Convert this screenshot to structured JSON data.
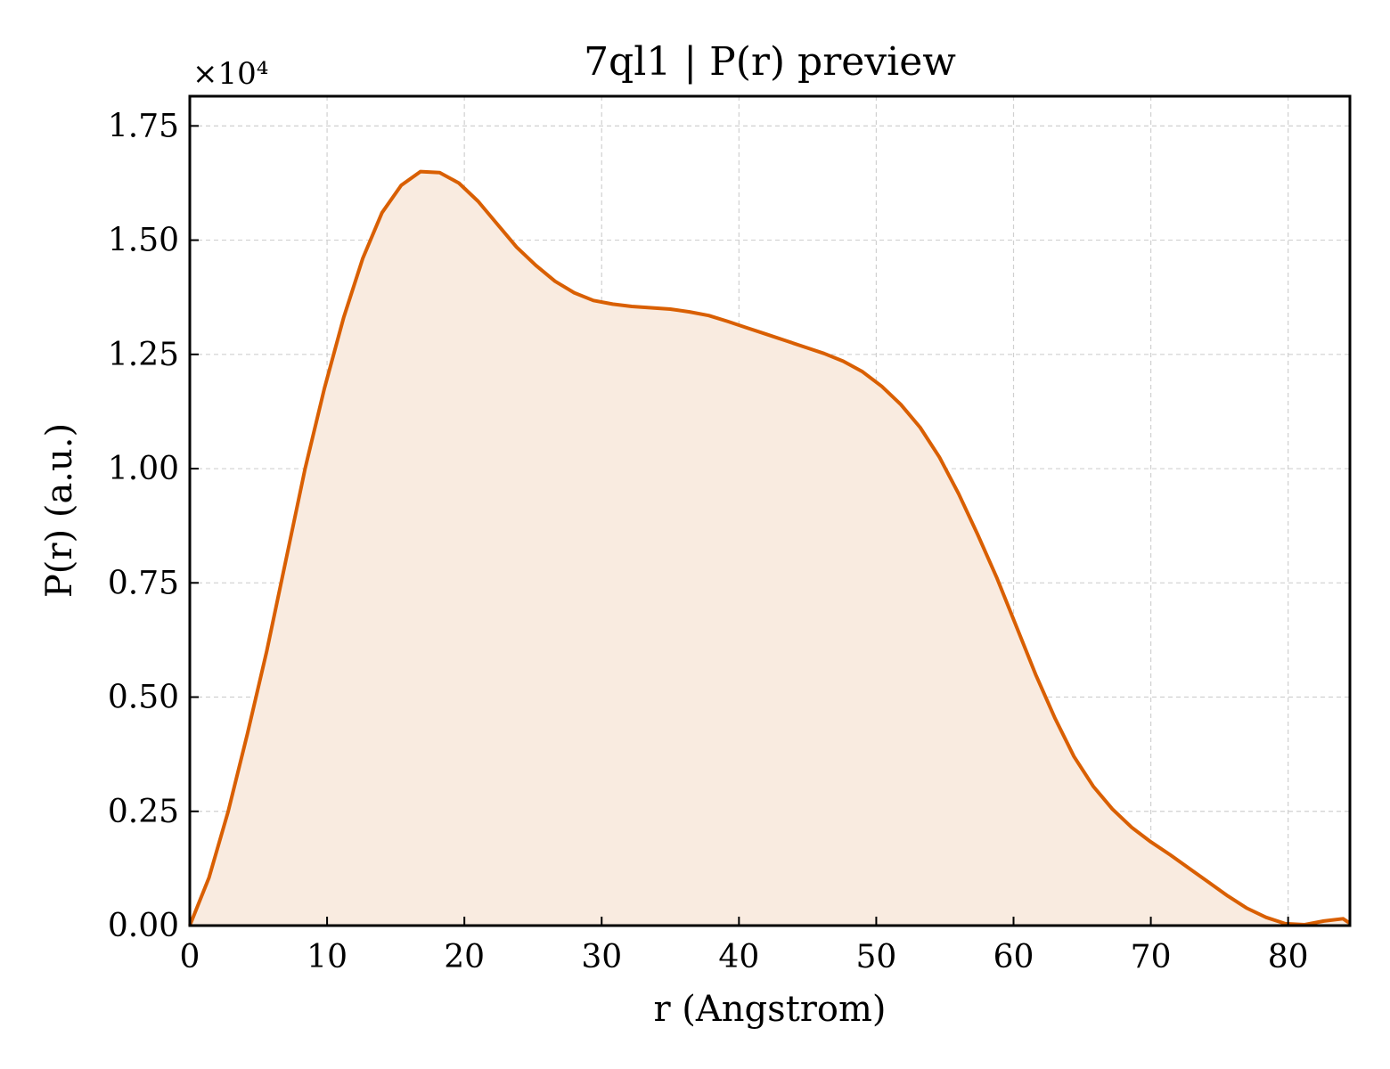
{
  "chart_data": {
    "type": "area",
    "title": "7ql1 | P(r) preview",
    "xlabel": "r (Angstrom)",
    "ylabel": "P(r) (a.u.)",
    "y_offset_label": "×10⁴",
    "xlim": [
      0,
      84.5
    ],
    "ylim": [
      0,
      1.815
    ],
    "x_ticks": [
      0,
      10,
      20,
      30,
      40,
      50,
      60,
      70,
      80
    ],
    "x_tick_labels": [
      "0",
      "10",
      "20",
      "30",
      "40",
      "50",
      "60",
      "70",
      "80"
    ],
    "y_ticks": [
      0,
      0.25,
      0.5,
      0.75,
      1.0,
      1.25,
      1.5,
      1.75
    ],
    "y_tick_labels": [
      "0.00",
      "0.25",
      "0.50",
      "0.75",
      "1.00",
      "1.25",
      "1.50",
      "1.75"
    ],
    "grid": true,
    "line_color": "#d95f02",
    "fill_color": "#f9ebe0",
    "series": [
      {
        "x": [
          0,
          1.4,
          2.8,
          4.2,
          5.6,
          7.0,
          8.4,
          9.8,
          11.2,
          12.6,
          14.0,
          15.4,
          16.8,
          18.2,
          19.6,
          21.0,
          22.4,
          23.8,
          25.2,
          26.6,
          28.0,
          29.4,
          30.8,
          32.2,
          33.6,
          35.0,
          36.4,
          37.8,
          39.2,
          40.6,
          42.0,
          43.4,
          44.8,
          46.2,
          47.6,
          49.0,
          50.4,
          51.8,
          53.2,
          54.6,
          56.0,
          57.4,
          58.8,
          60.2,
          61.6,
          63.0,
          64.4,
          65.8,
          67.2,
          68.6,
          70.0,
          71.4,
          72.8,
          74.2,
          75.6,
          77.0,
          78.4,
          79.8,
          81.2,
          82.6,
          84.0,
          84.5
        ],
        "y": [
          0.0,
          0.105,
          0.25,
          0.42,
          0.6,
          0.8,
          1.0,
          1.175,
          1.33,
          1.46,
          1.56,
          1.62,
          1.65,
          1.648,
          1.625,
          1.585,
          1.535,
          1.485,
          1.445,
          1.41,
          1.385,
          1.368,
          1.36,
          1.355,
          1.352,
          1.349,
          1.343,
          1.335,
          1.322,
          1.308,
          1.294,
          1.28,
          1.266,
          1.252,
          1.235,
          1.212,
          1.18,
          1.14,
          1.09,
          1.025,
          0.945,
          0.855,
          0.76,
          0.655,
          0.55,
          0.455,
          0.37,
          0.305,
          0.255,
          0.215,
          0.183,
          0.155,
          0.125,
          0.095,
          0.065,
          0.038,
          0.018,
          0.004,
          0.002,
          0.01,
          0.015,
          0.005
        ]
      }
    ]
  }
}
